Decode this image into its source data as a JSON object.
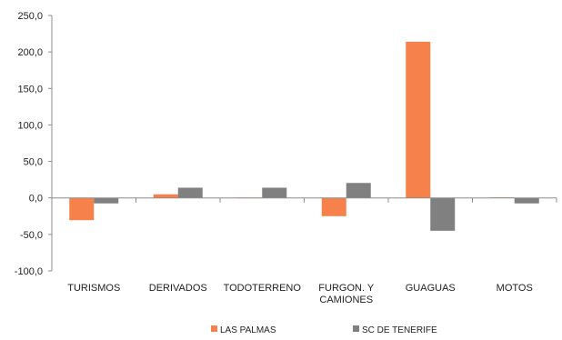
{
  "chart_data": {
    "type": "bar",
    "categories": [
      "TURISMOS",
      "DERIVADOS",
      "TODOTERRENO",
      "FURGON. Y\nCAMIONES",
      "GUAGUAS",
      "MOTOS"
    ],
    "series": [
      {
        "name": "LAS PALMAS",
        "color": "#f7814a",
        "values": [
          -30.5,
          5.0,
          0.5,
          -25.0,
          214.0,
          0.8
        ]
      },
      {
        "name": "SC DE TENERIFE",
        "color": "#808080",
        "values": [
          -7.5,
          14.0,
          14.0,
          20.5,
          -45.0,
          -7.5
        ]
      }
    ],
    "ylim": [
      -100,
      250
    ],
    "yticks": [
      -100,
      -50,
      0,
      50,
      100,
      150,
      200,
      250
    ],
    "ytick_labels": [
      "-100,0",
      "-50,0",
      "0,0",
      "50,0",
      "100,0",
      "150,0",
      "200,0",
      "250,0"
    ],
    "legend_position": "bottom",
    "grid": false,
    "title": "",
    "xlabel": "",
    "ylabel": ""
  }
}
